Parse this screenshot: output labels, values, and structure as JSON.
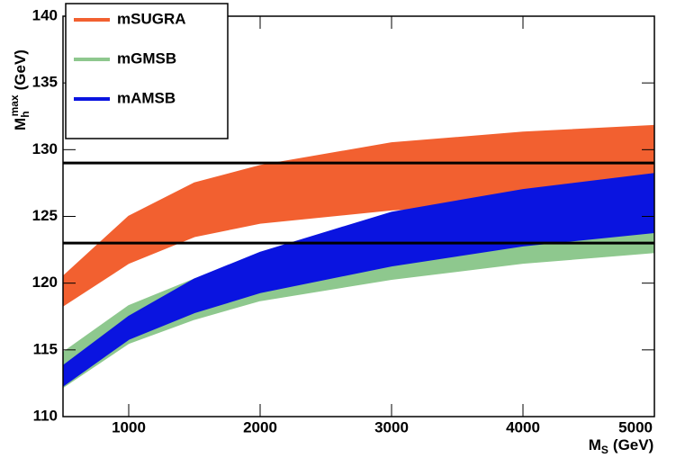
{
  "chart_data": {
    "type": "band",
    "x": [
      500,
      1000,
      1500,
      2000,
      3000,
      4000,
      5000
    ],
    "series": [
      {
        "name": "mSUGRA",
        "color": "#f26030",
        "lower": [
          118.3,
          121.5,
          123.5,
          124.5,
          125.5,
          126,
          126.5
        ],
        "upper": [
          120.5,
          125,
          127.5,
          128.8,
          130.5,
          131.3,
          131.8
        ]
      },
      {
        "name": "mGMSB",
        "color": "#8ec88e",
        "lower": [
          112.2,
          115.5,
          117.3,
          118.7,
          120.3,
          121.5,
          122.3
        ],
        "upper": [
          114.8,
          118.3,
          120.3,
          121.8,
          124,
          125.5,
          127
        ]
      },
      {
        "name": "mAMSB",
        "color": "#0a14e0",
        "lower": [
          112.3,
          115.8,
          117.8,
          119.3,
          121.3,
          122.8,
          123.8
        ],
        "upper": [
          113.8,
          117.5,
          120.3,
          122.3,
          125.3,
          127,
          128.2
        ]
      }
    ],
    "hlines": [
      129,
      123
    ],
    "xlim": [
      500,
      5000
    ],
    "xticks": [
      1000,
      2000,
      3000,
      4000,
      5000
    ],
    "ylim": [
      110,
      140
    ],
    "yticks": [
      110,
      115,
      120,
      125,
      130,
      135,
      140
    ],
    "xlabel": {
      "main": "M",
      "sub": "S",
      "unit": "(GeV)"
    },
    "ylabel": {
      "main": "M",
      "sub": "h",
      "sup": "max",
      "unit": "(GeV)"
    },
    "legend": "upper left"
  }
}
